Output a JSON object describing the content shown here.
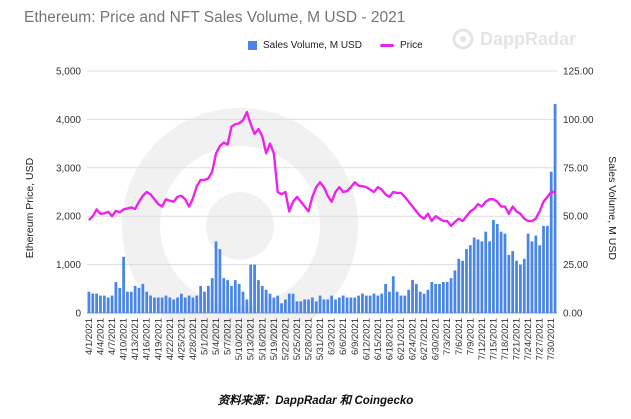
{
  "chart_data": {
    "type": "bar+line",
    "title": "Ethereum: Price and NFT Sales Volume, M USD - 2021",
    "ylabel_left": "Ethereum Price, USD",
    "ylabel_right": "Sales Volume, M USD",
    "y_left_ticks": [
      "5,000",
      "4,000",
      "3,000",
      "2,000",
      "1,000",
      "0"
    ],
    "y_right_ticks": [
      "125.00",
      "100.00",
      "75.00",
      "50.00",
      "25.00",
      "0.00"
    ],
    "y_left_lim": [
      0,
      5000
    ],
    "y_right_lim": [
      0,
      125
    ],
    "x_tick_labels": [
      "4/1/2021",
      "4/4/2021",
      "4/7/2021",
      "4/10/2021",
      "4/13/2021",
      "4/16/2021",
      "4/19/2021",
      "4/22/2021",
      "4/25/2021",
      "4/28/2021",
      "5/1/2021",
      "5/4/2021",
      "5/7/2021",
      "5/10/2021",
      "5/13/2021",
      "5/16/2021",
      "5/19/2021",
      "5/22/2021",
      "5/25/2021",
      "5/28/2021",
      "5/31/2021",
      "6/3/2021",
      "6/6/2021",
      "6/9/2021",
      "6/12/2021",
      "6/15/2021",
      "6/18/2021",
      "6/21/2021",
      "6/24/2021",
      "6/27/2021",
      "6/30/2021",
      "7/3/2021",
      "7/6/2021",
      "7/9/2021",
      "7/12/2021",
      "7/15/2021",
      "7/18/2021",
      "7/21/2021",
      "7/24/2021",
      "7/27/2021",
      "7/30/2021"
    ],
    "x_start": "2021-04-01",
    "x_end": "2021-07-31",
    "grid": true,
    "legend_position": "top-center",
    "series": [
      {
        "name": "Sales Volume, M USD",
        "type": "bar",
        "axis": "right",
        "color": "#4a86e8",
        "values": [
          11,
          10,
          10,
          9,
          9,
          8,
          9,
          16,
          13,
          29,
          11,
          11,
          14,
          13,
          15,
          11,
          9,
          8,
          8,
          8,
          9,
          8,
          7,
          8,
          10,
          8,
          9,
          8,
          9,
          14,
          11,
          14,
          18,
          37,
          33,
          18,
          17,
          14,
          17,
          15,
          11,
          7,
          25,
          25,
          17,
          14,
          12,
          10,
          8,
          9,
          5,
          7,
          10,
          10,
          6,
          6,
          7,
          7,
          8,
          6,
          9,
          7,
          7,
          9,
          7,
          8,
          9,
          8,
          8,
          8,
          9,
          10,
          9,
          9,
          10,
          9,
          10,
          15,
          11,
          19,
          11,
          9,
          9,
          12,
          17,
          15,
          11,
          10,
          12,
          16,
          15,
          15,
          16,
          16,
          18,
          22,
          28,
          27,
          33,
          35,
          39,
          38,
          37,
          42,
          37,
          48,
          46,
          42,
          41,
          30,
          32,
          27,
          25,
          28,
          41,
          37,
          40,
          35,
          45,
          45,
          73,
          108
        ]
      },
      {
        "name": "Price",
        "type": "line",
        "axis": "left",
        "color": "#ee22ee",
        "values": [
          1920,
          2000,
          2140,
          2050,
          2060,
          2090,
          2000,
          2110,
          2080,
          2140,
          2160,
          2180,
          2150,
          2300,
          2420,
          2500,
          2450,
          2350,
          2250,
          2200,
          2350,
          2320,
          2300,
          2400,
          2420,
          2350,
          2200,
          2370,
          2620,
          2750,
          2750,
          2780,
          2920,
          3300,
          3450,
          3520,
          3480,
          3850,
          3900,
          3920,
          3980,
          4150,
          3900,
          3700,
          3800,
          3650,
          3300,
          3500,
          3300,
          2500,
          2450,
          2500,
          2100,
          2300,
          2400,
          2300,
          2200,
          2100,
          2400,
          2600,
          2700,
          2600,
          2420,
          2300,
          2500,
          2600,
          2500,
          2520,
          2600,
          2700,
          2630,
          2620,
          2600,
          2550,
          2500,
          2600,
          2550,
          2450,
          2400,
          2500,
          2480,
          2480,
          2400,
          2300,
          2200,
          2100,
          2000,
          1950,
          2050,
          1900,
          2000,
          1950,
          1900,
          1900,
          1800,
          1880,
          1950,
          1900,
          2000,
          2100,
          2150,
          2250,
          2200,
          2300,
          2350,
          2350,
          2300,
          2200,
          2200,
          2050,
          2200,
          2100,
          2050,
          1950,
          1900,
          1900,
          1950,
          2100,
          2300,
          2400,
          2500,
          2500
        ]
      }
    ]
  },
  "brand": "DappRadar",
  "brand_icon": "dappradar-logo-icon",
  "source": "资料来源：DappRadar 和 Coingecko"
}
